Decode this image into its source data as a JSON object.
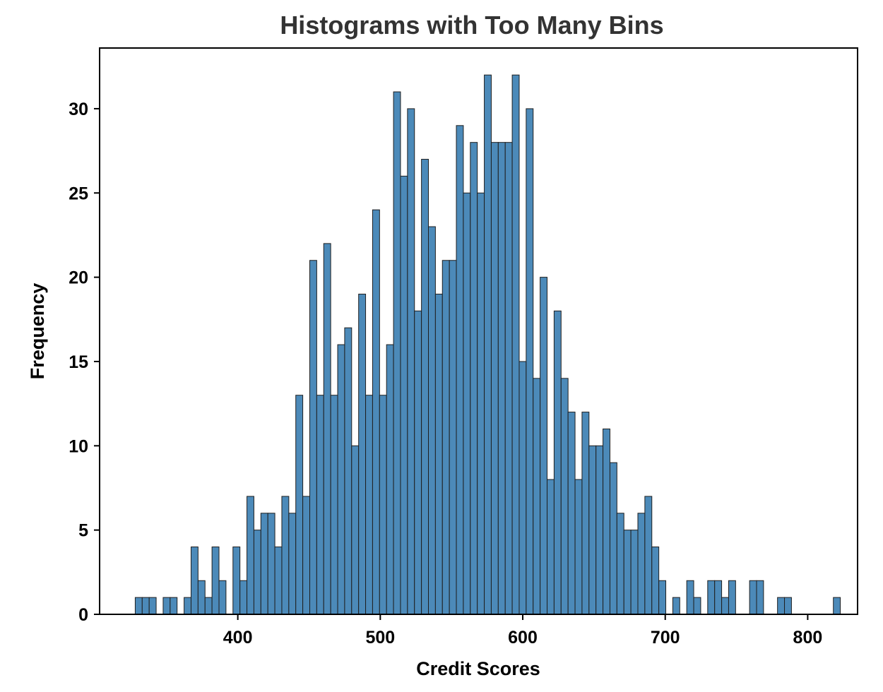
{
  "chart_data": {
    "type": "bar",
    "title": "Histograms with Too Many Bins",
    "xlabel": "Credit Scores",
    "ylabel": "Frequency",
    "xlim": [
      303,
      835
    ],
    "ylim": [
      0,
      33.6
    ],
    "xticks": [
      400,
      500,
      600,
      700,
      800
    ],
    "yticks": [
      0,
      5,
      10,
      15,
      20,
      25,
      30
    ],
    "grid": false,
    "bar_color": "#4c8ab9",
    "bin_start": 328,
    "bin_width": 4.9,
    "values": [
      1,
      1,
      1,
      0,
      1,
      1,
      0,
      1,
      4,
      2,
      1,
      4,
      2,
      0,
      4,
      2,
      7,
      5,
      6,
      6,
      4,
      7,
      6,
      13,
      7,
      21,
      13,
      22,
      13,
      16,
      17,
      10,
      19,
      13,
      24,
      13,
      16,
      31,
      26,
      30,
      18,
      27,
      23,
      19,
      21,
      21,
      29,
      25,
      28,
      25,
      32,
      28,
      28,
      28,
      32,
      15,
      30,
      14,
      20,
      8,
      18,
      14,
      12,
      8,
      12,
      10,
      10,
      11,
      9,
      6,
      5,
      5,
      6,
      7,
      4,
      2,
      0,
      1,
      0,
      2,
      1,
      0,
      2,
      2,
      1,
      2,
      0,
      0,
      2,
      2,
      0,
      0,
      1,
      1,
      0,
      0,
      0,
      0,
      0,
      0,
      1
    ]
  }
}
